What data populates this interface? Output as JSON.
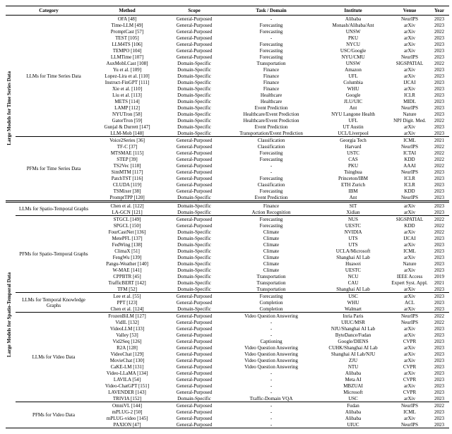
{
  "headers": {
    "category": "Category",
    "method": "Method",
    "scope": "Scope",
    "task": "Task / Domain",
    "institute": "Institute",
    "venue": "Venue",
    "year": "Year"
  },
  "supercats": {
    "ts": "Large Models for Time Series Data",
    "st": "Large Models for Spatio-Temporal Data"
  },
  "sections": [
    {
      "category": "LLMs for Time Series Data",
      "supercat": "ts",
      "border": "first",
      "rows": [
        {
          "method": "OFA [48]",
          "scope": "General-Purposed",
          "task": "-",
          "inst": "Alibaba",
          "venue": "NeurIPS",
          "year": "2023"
        },
        {
          "method": "Time-LLM [49]",
          "scope": "General-Purposed",
          "task": "Forecasting",
          "inst": "Monash/Alibaba/Ant",
          "venue": "arXiv",
          "year": "2023"
        },
        {
          "method": "PromptCast [57]",
          "scope": "General-Purposed",
          "task": "Forecasting",
          "inst": "UNSW",
          "venue": "arXiv",
          "year": "2022"
        },
        {
          "method": "TEST [105]",
          "scope": "General-Purposed",
          "task": "-",
          "inst": "PKU",
          "venue": "arXiv",
          "year": "2023"
        },
        {
          "method": "LLM4TS [106]",
          "scope": "General-Purposed",
          "task": "Forecasting",
          "inst": "NYCU",
          "venue": "arXiv",
          "year": "2023"
        },
        {
          "method": "TEMPO [104]",
          "scope": "General-Purposed",
          "task": "Forecasting",
          "inst": "USC/Google",
          "venue": "arXiv",
          "year": "2023"
        },
        {
          "method": "LLMTime [107]",
          "scope": "General-Purposed",
          "task": "Forecasting",
          "inst": "NYU/CMU",
          "venue": "NeurIPS",
          "year": "2023"
        },
        {
          "method": "AuxMobLCast [108]",
          "scope": "Domain-Specific",
          "task": "Transportation",
          "inst": "UNSW",
          "venue": "SIGSPATIAL",
          "year": "2022"
        },
        {
          "method": "Yu et al. [109]",
          "scope": "Domain-Specific",
          "task": "Finance",
          "inst": "Amazon",
          "venue": "arXiv",
          "year": "2023"
        },
        {
          "method": "Lopez-Lira et al. [110]",
          "scope": "Domain-Specific",
          "task": "Finance",
          "inst": "UFL",
          "venue": "arXiv",
          "year": "2023"
        },
        {
          "method": "Instruct-FinGPT [111]",
          "scope": "Domain-Specific",
          "task": "Finance",
          "inst": "Columbia",
          "venue": "IJCAI",
          "year": "2023"
        },
        {
          "method": "Xie et al. [110]",
          "scope": "Domain-Specific",
          "task": "Finance",
          "inst": "WHU",
          "venue": "arXiv",
          "year": "2023"
        },
        {
          "method": "Liu et al. [113]",
          "scope": "Domain-Specific",
          "task": "Healthcare",
          "inst": "Google",
          "venue": "ICLR",
          "year": "2023"
        },
        {
          "method": "METS [114]",
          "scope": "Domain-Specific",
          "task": "Healthcare",
          "inst": "JLU/UIC",
          "venue": "MIDL",
          "year": "2023"
        },
        {
          "method": "LAMP [112]",
          "scope": "Domain-Specific",
          "task": "Event Prediction",
          "inst": "Ant",
          "venue": "NeurIPS",
          "year": "2023"
        },
        {
          "method": "NYUTron [58]",
          "scope": "Domain-Specific",
          "task": "Healthcare/Event Prediction",
          "inst": "NYU Langone Health",
          "venue": "Nature",
          "year": "2023"
        },
        {
          "method": "GatorTron [59]",
          "scope": "Domain-Specific",
          "task": "Healthcare/Event Prediction",
          "inst": "UFL",
          "venue": "NPJ Digit. Med.",
          "year": "2022"
        },
        {
          "method": "Gunjal & Durrett [147]",
          "scope": "Domain-Specific",
          "task": "Event Prediction",
          "inst": "UT Austin",
          "venue": "arXiv",
          "year": "2023"
        },
        {
          "method": "LLM-Mob [148]",
          "scope": "Domain-Specific",
          "task": "Transportation/Event Prediction",
          "inst": "UCL/Liverpool",
          "venue": "arXiv",
          "year": "2023"
        }
      ]
    },
    {
      "category": "PFMs for Time Series Data",
      "supercat": "ts",
      "border": "thin",
      "rows": [
        {
          "method": "Voice2Series [36]",
          "scope": "General-Purposed",
          "task": "Classification",
          "inst": "Georgia Tech",
          "venue": "ICML",
          "year": "2021"
        },
        {
          "method": "TF-C [37]",
          "scope": "General-Purposed",
          "task": "Classification",
          "inst": "Harvard",
          "venue": "NeurIPS",
          "year": "2022"
        },
        {
          "method": "MTSMAE [115]",
          "scope": "General-Purposed",
          "task": "Forecasting",
          "inst": "USTC",
          "venue": "ICTAI",
          "year": "2022"
        },
        {
          "method": "STEP [39]",
          "scope": "General-Purposed",
          "task": "Forecasting",
          "inst": "CAS",
          "venue": "KDD",
          "year": "2022"
        },
        {
          "method": "TS2Vec [118]",
          "scope": "General-Purposed",
          "task": "-",
          "inst": "PKU",
          "venue": "AAAI",
          "year": "2022"
        },
        {
          "method": "SimMTM [117]",
          "scope": "General-Purposed",
          "task": "-",
          "inst": "Tsinghua",
          "venue": "NeurIPS",
          "year": "2023"
        },
        {
          "method": "PatchTST [116]",
          "scope": "General-Purposed",
          "task": "Forecasting",
          "inst": "Princeton/IBM",
          "venue": "ICLR",
          "year": "2023"
        },
        {
          "method": "CLUDA [119]",
          "scope": "General-Purposed",
          "task": "Classification",
          "inst": "ETH Zurich",
          "venue": "ICLR",
          "year": "2023"
        },
        {
          "method": "TSMixer [38]",
          "scope": "General-Purposed",
          "task": "Forecasting",
          "inst": "IBM",
          "venue": "KDD",
          "year": "2023"
        },
        {
          "method": "PromptTPP [120]",
          "scope": "Domain-Specific",
          "task": "Event Prediction",
          "inst": "Ant",
          "venue": "NeurIPS",
          "year": "2023"
        }
      ]
    },
    {
      "category": "LLMs for Spatio-Temporal Graphs",
      "supercat": "st",
      "border": "double",
      "rows": [
        {
          "method": "Chen et al. [122]",
          "scope": "Domain-Specific",
          "task": "Finance",
          "inst": "SIT",
          "venue": "arXiv",
          "year": "2023"
        },
        {
          "method": "LA-GCN [121]",
          "scope": "Domain-Specific",
          "task": "Action Recognition",
          "inst": "Xidian",
          "venue": "arXiv",
          "year": "2023"
        }
      ]
    },
    {
      "category": "PFMs for Spatio-Temporal Graphs",
      "supercat": "st",
      "border": "thin",
      "rows": [
        {
          "method": "STGCL [149]",
          "scope": "General-Purposed",
          "task": "Forecasting",
          "inst": "NUS",
          "venue": "SIGSPATIAL",
          "year": "2022"
        },
        {
          "method": "SPGCL [150]",
          "scope": "General-Purposed",
          "task": "Forecasting",
          "inst": "UESTC",
          "venue": "KDD",
          "year": "2022"
        },
        {
          "method": "FourCastNet [136]",
          "scope": "Domain-Specific",
          "task": "Climate",
          "inst": "NVIDIA",
          "venue": "arXiv",
          "year": "2022"
        },
        {
          "method": "MetePFL [137]",
          "scope": "Domain-Specific",
          "task": "Climate",
          "inst": "UTS",
          "venue": "IJCAI",
          "year": "2023"
        },
        {
          "method": "FedWing [138]",
          "scope": "Domain-Specific",
          "task": "Climate",
          "inst": "UTS",
          "venue": "arXiv",
          "year": "2023"
        },
        {
          "method": "ClimaX [51]",
          "scope": "Domain-Specific",
          "task": "Climate",
          "inst": "UCLA/Microsoft",
          "venue": "ICML",
          "year": "2023"
        },
        {
          "method": "FengWu [139]",
          "scope": "Domain-Specific",
          "task": "Climate",
          "inst": "Shanghai AI Lab",
          "venue": "arXiv",
          "year": "2023"
        },
        {
          "method": "Pangu-Weather [140]",
          "scope": "Domain-Specific",
          "task": "Climate",
          "inst": "Huawei",
          "venue": "Nature",
          "year": "2023"
        },
        {
          "method": "W-MAE [141]",
          "scope": "Domain-Specific",
          "task": "Climate",
          "inst": "UESTC",
          "venue": "arXiv",
          "year": "2023"
        },
        {
          "method": "CPPBTR [45]",
          "scope": "Domain-Specific",
          "task": "Transportation",
          "inst": "NCU",
          "venue": "IEEE Access",
          "year": "2019"
        },
        {
          "method": "TrafficBERT [142]",
          "scope": "Domain-Specific",
          "task": "Transportation",
          "inst": "CAU",
          "venue": "Expert Syst. Appl.",
          "year": "2021"
        },
        {
          "method": "TFM [52]",
          "scope": "Domain-Specific",
          "task": "Transportation",
          "inst": "Shanghai AI Lab",
          "venue": "arXiv",
          "year": "2023"
        }
      ]
    },
    {
      "category": "LLMs for Temporal Knowledge Graphs",
      "supercat": "st",
      "border": "thin",
      "rows": [
        {
          "method": "Lee et al. [55]",
          "scope": "General-Purposed",
          "task": "Forecasting",
          "inst": "USC",
          "venue": "arXiv",
          "year": "2023"
        },
        {
          "method": "PPT [123]",
          "scope": "General-Purposed",
          "task": "Completion",
          "inst": "WHU",
          "venue": "ACL",
          "year": "2023"
        },
        {
          "method": "Chen et al. [124]",
          "scope": "Domain-Specific",
          "task": "Completion",
          "inst": "Walmart",
          "venue": "arXiv",
          "year": "2023"
        }
      ]
    },
    {
      "category": "LLMs for Video Data",
      "supercat": "st",
      "border": "thin",
      "rows": [
        {
          "method": "FrozenBiLM [127]",
          "scope": "General-Purposed",
          "task": "Video Question Answering",
          "inst": "Inria Paris",
          "venue": "NeurIPS",
          "year": "2022"
        },
        {
          "method": "VidIL [132]",
          "scope": "General-Purposed",
          "task": "-",
          "inst": "UIUC/MSR",
          "venue": "NeurIPS",
          "year": "2022"
        },
        {
          "method": "VideoLLM [133]",
          "scope": "General-Purposed",
          "task": "-",
          "inst": "NJU/Shanghai AI Lab",
          "venue": "arXiv",
          "year": "2023"
        },
        {
          "method": "Valley [53]",
          "scope": "General-Purposed",
          "task": "-",
          "inst": "ByteDance/Fudan",
          "venue": "arXiv",
          "year": "2023"
        },
        {
          "method": "Vid2Seq [126]",
          "scope": "General-Purposed",
          "task": "Captioning",
          "inst": "Google/DIENS",
          "venue": "CVPR",
          "year": "2023"
        },
        {
          "method": "R2A [128]",
          "scope": "General-Purposed",
          "task": "Video Question Answering",
          "inst": "CUHK/Shanghai AI Lab",
          "venue": "arXiv",
          "year": "2023"
        },
        {
          "method": "VideoChat [129]",
          "scope": "General-Purposed",
          "task": "Video Question Answering",
          "inst": "Shanghai AI Lab/NJU",
          "venue": "arXiv",
          "year": "2023"
        },
        {
          "method": "MovieChat [130]",
          "scope": "General-Purposed",
          "task": "Video Question Answering",
          "inst": "ZJU",
          "venue": "arXiv",
          "year": "2023"
        },
        {
          "method": "CaKE-LM [131]",
          "scope": "General-Purposed",
          "task": "Video Question Answering",
          "inst": "NTU",
          "venue": "CVPR",
          "year": "2023"
        },
        {
          "method": "Video-LLaMA [134]",
          "scope": "General-Purposed",
          "task": "-",
          "inst": "Alibaba",
          "venue": "arXiv",
          "year": "2023"
        },
        {
          "method": "LAVILA [54]",
          "scope": "General-Purposed",
          "task": "-",
          "inst": "Meta AI",
          "venue": "CVPR",
          "year": "2023"
        },
        {
          "method": "Video-ChatGPT [151]",
          "scope": "General-Purposed",
          "task": "-",
          "inst": "MBZUAI",
          "venue": "arXiv",
          "year": "2023"
        },
        {
          "method": "LAVENDER [143]",
          "scope": "General-Purposed",
          "task": "-",
          "inst": "Microsoft",
          "venue": "CVPR",
          "year": "2023"
        },
        {
          "method": "TRIVIA [152]",
          "scope": "Domain-Specific",
          "task": "Traffic-Domain VQA",
          "inst": "USC",
          "venue": "arXiv",
          "year": "2023"
        }
      ]
    },
    {
      "category": "PFMs for Video Data",
      "supercat": "st",
      "border": "thin",
      "rows": [
        {
          "method": "OmniVL [144]",
          "scope": "General-Purposed",
          "task": "-",
          "inst": "Fudan",
          "venue": "NeurIPS",
          "year": "2022"
        },
        {
          "method": "mPLUG-2 [50]",
          "scope": "General-Purposed",
          "task": "-",
          "inst": "Alibaba",
          "venue": "ICML",
          "year": "2023"
        },
        {
          "method": "mPLUG-video [145]",
          "scope": "General-Purposed",
          "task": "-",
          "inst": "Alibaba",
          "venue": "arXiv",
          "year": "2023"
        },
        {
          "method": "PAXION [47]",
          "scope": "General-Purposed",
          "task": "-",
          "inst": "UIUC",
          "venue": "NeurIPS",
          "year": "2023"
        }
      ]
    }
  ]
}
